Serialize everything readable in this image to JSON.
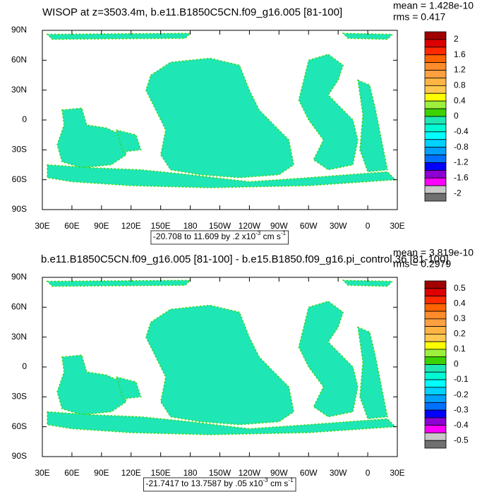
{
  "panels": [
    {
      "title": "WISOP at z=3503.4m, b.e11.B1850C5CN.f09_g16.005 [81-100]",
      "mean": "mean = 1.428e-10",
      "rms": "rms = 0.417",
      "xlim": [
        30,
        390
      ],
      "ylim": [
        -90,
        90
      ],
      "xticks": [
        {
          "value": 30,
          "label": "30E"
        },
        {
          "value": 60,
          "label": "60E"
        },
        {
          "value": 90,
          "label": "90E"
        },
        {
          "value": 120,
          "label": "120E"
        },
        {
          "value": 150,
          "label": "150E"
        },
        {
          "value": 180,
          "label": "180"
        },
        {
          "value": 210,
          "label": "150W"
        },
        {
          "value": 240,
          "label": "120W"
        },
        {
          "value": 270,
          "label": "90W"
        },
        {
          "value": 300,
          "label": "60W"
        },
        {
          "value": 330,
          "label": "30W"
        },
        {
          "value": 360,
          "label": "0"
        },
        {
          "value": 390,
          "label": "30E"
        }
      ],
      "yticks": [
        {
          "value": 90,
          "label": "90N"
        },
        {
          "value": 60,
          "label": "60N"
        },
        {
          "value": 30,
          "label": "30N"
        },
        {
          "value": 0,
          "label": "0"
        },
        {
          "value": -30,
          "label": "30S"
        },
        {
          "value": -60,
          "label": "60S"
        },
        {
          "value": -90,
          "label": "90S"
        }
      ],
      "colorbar": {
        "labels": [
          2,
          1.6,
          1.2,
          0.8,
          0.4,
          0,
          -0.4,
          -0.8,
          -1.2,
          -1.6,
          -2
        ],
        "colors": [
          "#a00000",
          "#dc0000",
          "#ff2a00",
          "#ff6400",
          "#ff8c2a",
          "#ffa040",
          "#ffb444",
          "#ffc850",
          "#ffff00",
          "#9cf03c",
          "#3cd200",
          "#1ee6b4",
          "#00fad2",
          "#00ffff",
          "#00d2ff",
          "#00a0ff",
          "#0070ff",
          "#0000ff",
          "#8c00d2",
          "#ff00ff",
          "#c8c8c8",
          "#707070"
        ]
      },
      "info": {
        "text": "-20.708 to 11.609 by .2 x10",
        "exp": "-3",
        "unit": " cm s",
        "unit_exp": "-1"
      }
    },
    {
      "title": "b.e11.B1850C5CN.f09_g16.005 [81-100] - b.e15.B1850.f09_g16.pi_control.36 [81-100]",
      "mean": "mean = 3.819e-10",
      "rms": "rms = 0.2979",
      "xlim": [
        30,
        390
      ],
      "ylim": [
        -90,
        90
      ],
      "xticks": [
        {
          "value": 30,
          "label": "30E"
        },
        {
          "value": 60,
          "label": "60E"
        },
        {
          "value": 90,
          "label": "90E"
        },
        {
          "value": 120,
          "label": "120E"
        },
        {
          "value": 150,
          "label": "150E"
        },
        {
          "value": 180,
          "label": "180"
        },
        {
          "value": 210,
          "label": "150W"
        },
        {
          "value": 240,
          "label": "120W"
        },
        {
          "value": 270,
          "label": "90W"
        },
        {
          "value": 300,
          "label": "60W"
        },
        {
          "value": 330,
          "label": "30W"
        },
        {
          "value": 360,
          "label": "0"
        },
        {
          "value": 390,
          "label": "30E"
        }
      ],
      "yticks": [
        {
          "value": 90,
          "label": "90N"
        },
        {
          "value": 60,
          "label": "60N"
        },
        {
          "value": 30,
          "label": "30N"
        },
        {
          "value": 0,
          "label": "0"
        },
        {
          "value": -30,
          "label": "30S"
        },
        {
          "value": -60,
          "label": "60S"
        },
        {
          "value": -90,
          "label": "90S"
        }
      ],
      "colorbar": {
        "labels": [
          0.5,
          0.4,
          0.3,
          0.2,
          0.1,
          0,
          -0.1,
          -0.2,
          -0.3,
          -0.4,
          -0.5
        ],
        "colors": [
          "#a00000",
          "#dc0000",
          "#ff2a00",
          "#ff6400",
          "#ff8c2a",
          "#ffa040",
          "#ffb444",
          "#ffc850",
          "#ffff00",
          "#9cf03c",
          "#3cd200",
          "#1ee6b4",
          "#00fad2",
          "#00ffff",
          "#00d2ff",
          "#00a0ff",
          "#0070ff",
          "#0000ff",
          "#8c00d2",
          "#ff00ff",
          "#c8c8c8",
          "#707070"
        ]
      },
      "info": {
        "text": "-21.7417 to 13.7587 by .05 x10",
        "exp": "-3",
        "unit": " cm s",
        "unit_exp": "-1"
      }
    }
  ]
}
